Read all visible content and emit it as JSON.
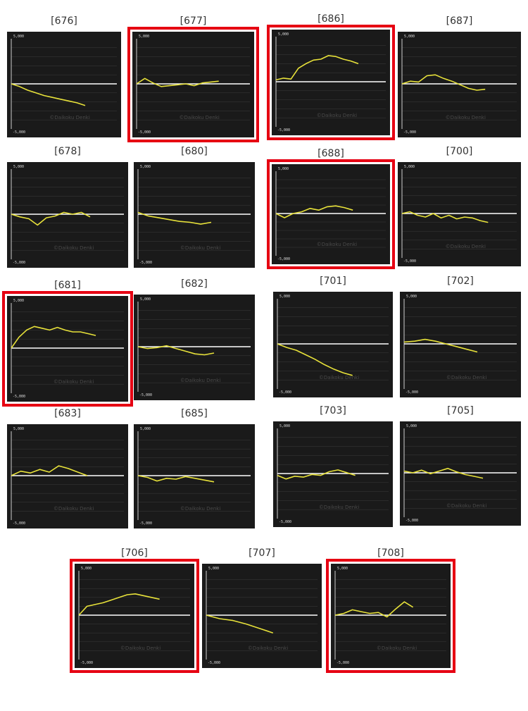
{
  "chart_data": [
    {
      "type": "line",
      "title": "[676]",
      "highlighted": false,
      "ylim": [
        -5000,
        5000
      ],
      "yticks": [
        "5,000",
        "-5,000"
      ],
      "watermark": "©Daikoku Denki",
      "series": [
        {
          "values": [
            0,
            -300,
            -700,
            -1000,
            -1300,
            -1500,
            -1700,
            -1900,
            -2100,
            -2400
          ]
        }
      ]
    },
    {
      "type": "line",
      "title": "[677]",
      "highlighted": true,
      "ylim": [
        -5000,
        5000
      ],
      "yticks": [
        "5,000",
        "-5,000"
      ],
      "watermark": "©Daikoku Denki",
      "series": [
        {
          "values": [
            0,
            600,
            100,
            -300,
            -200,
            -100,
            0,
            -200,
            100,
            200,
            300
          ]
        }
      ]
    },
    {
      "type": "line",
      "title": "[686]",
      "highlighted": true,
      "ylim": [
        -5000,
        5000
      ],
      "yticks": [
        "5,000",
        "-5,000"
      ],
      "watermark": "©Daikoku Denki",
      "series": [
        {
          "values": [
            200,
            400,
            300,
            1500,
            2000,
            2400,
            2500,
            2900,
            2800,
            2500,
            2300,
            2000
          ]
        }
      ]
    },
    {
      "type": "line",
      "title": "[687]",
      "highlighted": false,
      "ylim": [
        -5000,
        5000
      ],
      "yticks": [
        "5,000",
        "-5,000"
      ],
      "watermark": "©Daikoku Denki",
      "series": [
        {
          "values": [
            0,
            300,
            200,
            900,
            1000,
            600,
            300,
            -100,
            -500,
            -700,
            -600
          ]
        }
      ]
    },
    {
      "type": "line",
      "title": "[678]",
      "highlighted": false,
      "ylim": [
        -5000,
        5000
      ],
      "yticks": [
        "5,000",
        "-5,000"
      ],
      "watermark": "©Daikoku Denki",
      "series": [
        {
          "values": [
            0,
            -300,
            -500,
            -1200,
            -400,
            -200,
            200,
            0,
            200,
            -300
          ]
        }
      ]
    },
    {
      "type": "line",
      "title": "[680]",
      "highlighted": false,
      "ylim": [
        -5000,
        5000
      ],
      "yticks": [
        "5,000",
        "-5,000"
      ],
      "watermark": "©Daikoku Denki",
      "series": [
        {
          "values": [
            200,
            -200,
            -400,
            -600,
            -800,
            -900,
            -1100,
            -900
          ]
        }
      ]
    },
    {
      "type": "line",
      "title": "[688]",
      "highlighted": true,
      "ylim": [
        -5000,
        5000
      ],
      "yticks": [
        "5,000",
        "-5,000"
      ],
      "watermark": "©Daikoku Denki",
      "series": [
        {
          "values": [
            0,
            -500,
            0,
            200,
            600,
            400,
            800,
            900,
            700,
            400
          ]
        }
      ]
    },
    {
      "type": "line",
      "title": "[700]",
      "highlighted": false,
      "ylim": [
        -5000,
        5000
      ],
      "yticks": [
        "5,000",
        "-5,000"
      ],
      "watermark": "©Daikoku Denki",
      "series": [
        {
          "values": [
            0,
            200,
            -200,
            -400,
            0,
            -500,
            -200,
            -600,
            -400,
            -500,
            -800,
            -1000
          ]
        }
      ]
    },
    {
      "type": "line",
      "title": "[681]",
      "highlighted": true,
      "ylim": [
        -5000,
        5000
      ],
      "yticks": [
        "5,000",
        "-5,000"
      ],
      "watermark": "©Daikoku Denki",
      "series": [
        {
          "values": [
            0,
            1200,
            2000,
            2400,
            2200,
            2000,
            2300,
            2000,
            1800,
            1800,
            1600,
            1400
          ]
        }
      ]
    },
    {
      "type": "line",
      "title": "[682]",
      "highlighted": false,
      "ylim": [
        -5000,
        5000
      ],
      "yticks": [
        "5,000",
        "-5,000"
      ],
      "watermark": "©Daikoku Denki",
      "series": [
        {
          "values": [
            0,
            -200,
            -100,
            100,
            -200,
            -500,
            -800,
            -900,
            -700
          ]
        }
      ]
    },
    {
      "type": "line",
      "title": "[701]",
      "highlighted": false,
      "ylim": [
        -5000,
        5000
      ],
      "yticks": [
        "5,000",
        "-5,000"
      ],
      "watermark": "©Daikoku Denki",
      "series": [
        {
          "values": [
            0,
            -400,
            -700,
            -1200,
            -1700,
            -2300,
            -2800,
            -3200,
            -3500
          ]
        }
      ]
    },
    {
      "type": "line",
      "title": "[702]",
      "highlighted": false,
      "ylim": [
        -5000,
        5000
      ],
      "yticks": [
        "5,000",
        "-5,000"
      ],
      "watermark": "©Daikoku Denki",
      "series": [
        {
          "values": [
            200,
            300,
            500,
            300,
            0,
            -300,
            -600,
            -900
          ]
        }
      ]
    },
    {
      "type": "line",
      "title": "[683]",
      "highlighted": false,
      "ylim": [
        -5000,
        5000
      ],
      "yticks": [
        "5,000",
        "-5,000"
      ],
      "watermark": "©Daikoku Denki",
      "series": [
        {
          "values": [
            0,
            500,
            300,
            700,
            400,
            1100,
            800,
            400,
            0
          ]
        }
      ]
    },
    {
      "type": "line",
      "title": "[685]",
      "highlighted": false,
      "ylim": [
        -5000,
        5000
      ],
      "yticks": [
        "5,000",
        "-5,000"
      ],
      "watermark": "©Daikoku Denki",
      "series": [
        {
          "values": [
            0,
            -200,
            -600,
            -300,
            -400,
            -100,
            -300,
            -500,
            -700
          ]
        }
      ]
    },
    {
      "type": "line",
      "title": "[703]",
      "highlighted": false,
      "ylim": [
        -5000,
        5000
      ],
      "yticks": [
        "5,000",
        "-5,000"
      ],
      "watermark": "©Daikoku Denki",
      "series": [
        {
          "values": [
            -200,
            -600,
            -300,
            -400,
            -100,
            -200,
            200,
            400,
            100,
            -200
          ]
        }
      ]
    },
    {
      "type": "line",
      "title": "[705]",
      "highlighted": false,
      "ylim": [
        -5000,
        5000
      ],
      "yticks": [
        "5,000",
        "-5,000"
      ],
      "watermark": "©Daikoku Denki",
      "series": [
        {
          "values": [
            200,
            0,
            300,
            -100,
            200,
            500,
            100,
            -200,
            -400,
            -600
          ]
        }
      ]
    },
    {
      "type": "line",
      "title": "[706]",
      "highlighted": true,
      "ylim": [
        -5000,
        5000
      ],
      "yticks": [
        "5,000",
        "-5,000"
      ],
      "watermark": "©Daikoku Denki",
      "series": [
        {
          "values": [
            0,
            1000,
            1200,
            1400,
            1700,
            2000,
            2300,
            2400,
            2200,
            2000,
            1800
          ]
        }
      ]
    },
    {
      "type": "line",
      "title": "[707]",
      "highlighted": false,
      "ylim": [
        -5000,
        5000
      ],
      "yticks": [
        "5,000",
        "-5,000"
      ],
      "watermark": "©Daikoku Denki",
      "series": [
        {
          "values": [
            0,
            -400,
            -600,
            -1000,
            -1500,
            -2000
          ]
        }
      ]
    },
    {
      "type": "line",
      "title": "[708]",
      "highlighted": true,
      "ylim": [
        -5000,
        5000
      ],
      "yticks": [
        "5,000",
        "-5,000"
      ],
      "watermark": "©Daikoku Denki",
      "series": [
        {
          "values": [
            0,
            200,
            600,
            400,
            200,
            300,
            -200,
            700,
            1500,
            900
          ]
        }
      ]
    }
  ],
  "colors": {
    "panel_bg": "#1a1a1a",
    "line": "#e8e23a",
    "zero_line": "#ffffff",
    "grid": "#3c3c3c",
    "highlight": "#e60012"
  }
}
